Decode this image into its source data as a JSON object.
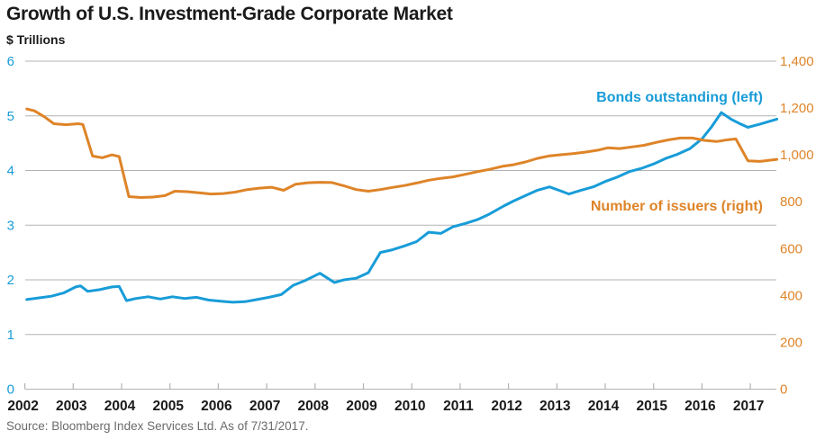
{
  "header": {
    "title": "Growth of U.S. Investment-Grade Corporate Market",
    "subtitle": "$ Trillions"
  },
  "footer": {
    "source": "Source: Bloomberg Index Services Ltd. As of 7/31/2017."
  },
  "colors": {
    "bonds_line": "#189CD8",
    "issuers_line": "#DE8428",
    "gridline": "#b3b3b3",
    "axis_text_dark": "#1a1a1a",
    "source_text": "#6b6b6b",
    "background": "#ffffff"
  },
  "chart_data": {
    "type": "line",
    "title": "Growth of U.S. Investment-Grade Corporate Market",
    "grid": "horizontal",
    "legend_position": "inside-right",
    "x_axis": {
      "range": [
        2002,
        2017.58
      ],
      "tick_labels": [
        "2002",
        "2003",
        "2004",
        "2005",
        "2006",
        "2007",
        "2008",
        "2009",
        "2010",
        "2011",
        "2012",
        "2013",
        "2014",
        "2015",
        "2016",
        "2017"
      ]
    },
    "left_axis": {
      "label": "$ Trillions",
      "min": 0,
      "max": 6,
      "step": 1,
      "tick_labels": [
        "0",
        "1",
        "2",
        "3",
        "4",
        "5",
        "6"
      ],
      "color": "#189CD8"
    },
    "right_axis": {
      "label": "Number of issuers",
      "min": 0,
      "max": 1400,
      "step": 200,
      "tick_labels": [
        "0",
        "200",
        "400",
        "600",
        "800",
        "1,000",
        "1,200",
        "1,400"
      ],
      "color": "#DE8428"
    },
    "legend": [
      {
        "label": "Bonds outstanding (left)",
        "color": "#189CD8"
      },
      {
        "label": "Number of issuers (right)",
        "color": "#DE8428"
      }
    ],
    "series": [
      {
        "name": "Bonds outstanding (left)",
        "axis": "left",
        "units": "$ trillions",
        "color": "#189CD8",
        "points": [
          [
            2002.04,
            1.64
          ],
          [
            2002.3,
            1.67
          ],
          [
            2002.55,
            1.7
          ],
          [
            2002.8,
            1.76
          ],
          [
            2003.05,
            1.87
          ],
          [
            2003.15,
            1.89
          ],
          [
            2003.3,
            1.79
          ],
          [
            2003.55,
            1.82
          ],
          [
            2003.8,
            1.87
          ],
          [
            2003.95,
            1.88
          ],
          [
            2004.1,
            1.62
          ],
          [
            2004.3,
            1.66
          ],
          [
            2004.55,
            1.69
          ],
          [
            2004.8,
            1.65
          ],
          [
            2005.05,
            1.69
          ],
          [
            2005.3,
            1.66
          ],
          [
            2005.55,
            1.68
          ],
          [
            2005.8,
            1.63
          ],
          [
            2006.05,
            1.61
          ],
          [
            2006.3,
            1.59
          ],
          [
            2006.55,
            1.6
          ],
          [
            2006.8,
            1.64
          ],
          [
            2007.05,
            1.68
          ],
          [
            2007.3,
            1.73
          ],
          [
            2007.55,
            1.9
          ],
          [
            2007.8,
            1.99
          ],
          [
            2008.1,
            2.12
          ],
          [
            2008.4,
            1.95
          ],
          [
            2008.6,
            2.0
          ],
          [
            2008.85,
            2.03
          ],
          [
            2009.1,
            2.13
          ],
          [
            2009.35,
            2.5
          ],
          [
            2009.6,
            2.55
          ],
          [
            2009.85,
            2.62
          ],
          [
            2010.1,
            2.7
          ],
          [
            2010.35,
            2.87
          ],
          [
            2010.6,
            2.85
          ],
          [
            2010.85,
            2.97
          ],
          [
            2011.1,
            3.03
          ],
          [
            2011.35,
            3.1
          ],
          [
            2011.6,
            3.2
          ],
          [
            2011.9,
            3.35
          ],
          [
            2012.1,
            3.44
          ],
          [
            2012.35,
            3.54
          ],
          [
            2012.6,
            3.64
          ],
          [
            2012.85,
            3.7
          ],
          [
            2013.1,
            3.62
          ],
          [
            2013.25,
            3.57
          ],
          [
            2013.5,
            3.64
          ],
          [
            2013.75,
            3.7
          ],
          [
            2014.0,
            3.8
          ],
          [
            2014.25,
            3.88
          ],
          [
            2014.5,
            3.98
          ],
          [
            2014.75,
            4.04
          ],
          [
            2015.0,
            4.12
          ],
          [
            2015.25,
            4.22
          ],
          [
            2015.5,
            4.3
          ],
          [
            2015.75,
            4.4
          ],
          [
            2016.0,
            4.58
          ],
          [
            2016.2,
            4.8
          ],
          [
            2016.4,
            5.06
          ],
          [
            2016.6,
            4.94
          ],
          [
            2016.8,
            4.85
          ],
          [
            2016.95,
            4.79
          ],
          [
            2017.2,
            4.85
          ],
          [
            2017.55,
            4.94
          ]
        ]
      },
      {
        "name": "Number of issuers (right)",
        "axis": "right",
        "units": "issuers",
        "color": "#DE8428",
        "points": [
          [
            2002.04,
            1196
          ],
          [
            2002.2,
            1188
          ],
          [
            2002.4,
            1163
          ],
          [
            2002.6,
            1133
          ],
          [
            2002.85,
            1129
          ],
          [
            2003.1,
            1133
          ],
          [
            2003.2,
            1130
          ],
          [
            2003.4,
            995
          ],
          [
            2003.6,
            988
          ],
          [
            2003.8,
            1000
          ],
          [
            2003.95,
            993
          ],
          [
            2004.15,
            822
          ],
          [
            2004.4,
            818
          ],
          [
            2004.65,
            820
          ],
          [
            2004.9,
            826
          ],
          [
            2005.1,
            845
          ],
          [
            2005.35,
            843
          ],
          [
            2005.6,
            838
          ],
          [
            2005.85,
            833
          ],
          [
            2006.1,
            835
          ],
          [
            2006.35,
            841
          ],
          [
            2006.6,
            852
          ],
          [
            2006.85,
            858
          ],
          [
            2007.1,
            862
          ],
          [
            2007.35,
            849
          ],
          [
            2007.6,
            875
          ],
          [
            2007.85,
            881
          ],
          [
            2008.1,
            883
          ],
          [
            2008.35,
            882
          ],
          [
            2008.6,
            868
          ],
          [
            2008.85,
            852
          ],
          [
            2009.1,
            845
          ],
          [
            2009.35,
            852
          ],
          [
            2009.6,
            861
          ],
          [
            2009.85,
            869
          ],
          [
            2010.1,
            880
          ],
          [
            2010.35,
            892
          ],
          [
            2010.6,
            900
          ],
          [
            2010.85,
            906
          ],
          [
            2011.1,
            917
          ],
          [
            2011.35,
            928
          ],
          [
            2011.6,
            938
          ],
          [
            2011.9,
            952
          ],
          [
            2012.1,
            958
          ],
          [
            2012.35,
            970
          ],
          [
            2012.6,
            985
          ],
          [
            2012.85,
            996
          ],
          [
            2013.1,
            1001
          ],
          [
            2013.35,
            1006
          ],
          [
            2013.6,
            1012
          ],
          [
            2013.85,
            1020
          ],
          [
            2014.05,
            1030
          ],
          [
            2014.3,
            1027
          ],
          [
            2014.55,
            1034
          ],
          [
            2014.8,
            1041
          ],
          [
            2015.05,
            1053
          ],
          [
            2015.3,
            1064
          ],
          [
            2015.55,
            1072
          ],
          [
            2015.8,
            1072
          ],
          [
            2016.05,
            1062
          ],
          [
            2016.3,
            1057
          ],
          [
            2016.55,
            1065
          ],
          [
            2016.7,
            1068
          ],
          [
            2016.95,
            975
          ],
          [
            2017.2,
            972
          ],
          [
            2017.55,
            981
          ]
        ]
      }
    ]
  }
}
